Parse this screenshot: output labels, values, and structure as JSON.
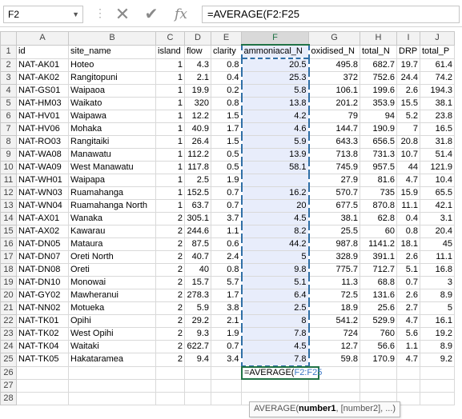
{
  "name_box": "F2",
  "formula": "=AVERAGE(F2:F25",
  "columns": [
    "A",
    "B",
    "C",
    "D",
    "E",
    "F",
    "G",
    "H",
    "I",
    "J"
  ],
  "active_column": "F",
  "headers": [
    "id",
    "site_name",
    "island",
    "flow",
    "clarity",
    "ammoniacal_N",
    "oxidised_N",
    "total_N",
    "DRP",
    "total_P"
  ],
  "rows": [
    [
      "NAT-AK01",
      "Hoteo",
      "1",
      "4.3",
      "0.8",
      "20.5",
      "495.8",
      "682.7",
      "19.7",
      "61.4"
    ],
    [
      "NAT-AK02",
      "Rangitopuni",
      "1",
      "2.1",
      "0.4",
      "25.3",
      "372",
      "752.6",
      "24.4",
      "74.2"
    ],
    [
      "NAT-GS01",
      "Waipaoa",
      "1",
      "19.9",
      "0.2",
      "5.8",
      "106.1",
      "199.6",
      "2.6",
      "194.3"
    ],
    [
      "NAT-HM03",
      "Waikato",
      "1",
      "320",
      "0.8",
      "13.8",
      "201.2",
      "353.9",
      "15.5",
      "38.1"
    ],
    [
      "NAT-HV01",
      "Waipawa",
      "1",
      "12.2",
      "1.5",
      "4.2",
      "79",
      "94",
      "5.2",
      "23.8"
    ],
    [
      "NAT-HV06",
      "Mohaka",
      "1",
      "40.9",
      "1.7",
      "4.6",
      "144.7",
      "190.9",
      "7",
      "16.5"
    ],
    [
      "NAT-RO03",
      "Rangitaiki",
      "1",
      "26.4",
      "1.5",
      "5.9",
      "643.3",
      "656.5",
      "20.8",
      "31.8"
    ],
    [
      "NAT-WA08",
      "Manawatu",
      "1",
      "112.2",
      "0.5",
      "13.9",
      "713.8",
      "731.3",
      "10.7",
      "51.4"
    ],
    [
      "NAT-WA09",
      "West Manawatu",
      "1",
      "117.8",
      "0.5",
      "58.1",
      "745.9",
      "957.5",
      "44",
      "121.9"
    ],
    [
      "NAT-WH01",
      "Waipapa",
      "1",
      "2.5",
      "1.9",
      "",
      "27.9",
      "81.6",
      "4.7",
      "10.4"
    ],
    [
      "NAT-WN03",
      "Ruamahanga",
      "1",
      "152.5",
      "0.7",
      "16.2",
      "570.7",
      "735",
      "15.9",
      "65.5"
    ],
    [
      "NAT-WN04",
      "Ruamahanga North",
      "1",
      "63.7",
      "0.7",
      "20",
      "677.5",
      "870.8",
      "11.1",
      "42.1"
    ],
    [
      "NAT-AX01",
      "Wanaka",
      "2",
      "305.1",
      "3.7",
      "4.5",
      "38.1",
      "62.8",
      "0.4",
      "3.1"
    ],
    [
      "NAT-AX02",
      "Kawarau",
      "2",
      "244.6",
      "1.1",
      "8.2",
      "25.5",
      "60",
      "0.8",
      "20.4"
    ],
    [
      "NAT-DN05",
      "Mataura",
      "2",
      "87.5",
      "0.6",
      "44.2",
      "987.8",
      "1141.2",
      "18.1",
      "45"
    ],
    [
      "NAT-DN07",
      "Oreti North",
      "2",
      "40.7",
      "2.4",
      "5",
      "328.9",
      "391.1",
      "2.6",
      "11.1"
    ],
    [
      "NAT-DN08",
      "Oreti",
      "2",
      "40",
      "0.8",
      "9.8",
      "775.7",
      "712.7",
      "5.1",
      "16.8"
    ],
    [
      "NAT-DN10",
      "Monowai",
      "2",
      "15.7",
      "5.7",
      "5.1",
      "11.3",
      "68.8",
      "0.7",
      "3"
    ],
    [
      "NAT-GY02",
      "Mawheranui",
      "2",
      "278.3",
      "1.7",
      "6.4",
      "72.5",
      "131.6",
      "2.6",
      "8.9"
    ],
    [
      "NAT-NN02",
      "Motueka",
      "2",
      "5.9",
      "3.8",
      "2.5",
      "18.9",
      "25.6",
      "2.7",
      "5"
    ],
    [
      "NAT-TK01",
      "Opihi",
      "2",
      "29.2",
      "2.1",
      "8",
      "541.2",
      "529.9",
      "4.7",
      "16.1"
    ],
    [
      "NAT-TK02",
      "West Opihi",
      "2",
      "9.3",
      "1.9",
      "7.8",
      "724",
      "760",
      "5.6",
      "19.2"
    ],
    [
      "NAT-TK04",
      "Waitaki",
      "2",
      "622.7",
      "0.7",
      "4.5",
      "12.7",
      "56.6",
      "1.1",
      "8.9"
    ],
    [
      "NAT-TK05",
      "Hakataramea",
      "2",
      "9.4",
      "3.4",
      "7.8",
      "59.8",
      "170.9",
      "4.7",
      "9.2"
    ]
  ],
  "edit_cell": {
    "row": "26",
    "prefix": "=AVERAGE(",
    "ref": "F2:F25"
  },
  "empty_rows": [
    "27",
    "28"
  ],
  "tooltip": {
    "func": "AVERAGE(",
    "arg1": "number1",
    "rest": ", [number2], ...)"
  },
  "icons": {
    "cancel": "close-icon",
    "enter": "check-icon",
    "function": "fx-icon"
  }
}
